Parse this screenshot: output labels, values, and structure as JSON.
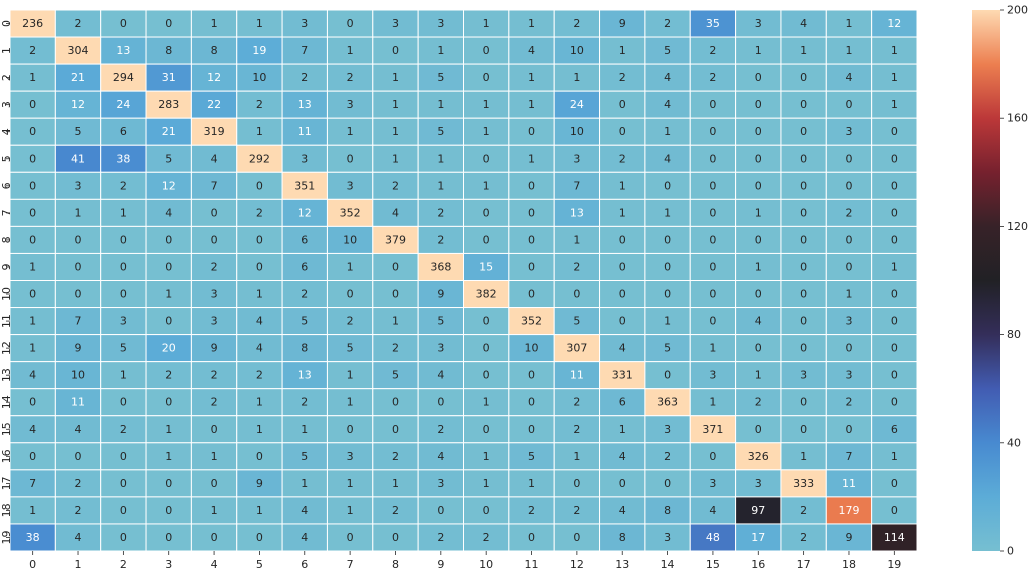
{
  "chart_data": {
    "type": "heatmap",
    "x_labels": [
      "0",
      "1",
      "2",
      "3",
      "4",
      "5",
      "6",
      "7",
      "8",
      "9",
      "10",
      "11",
      "12",
      "13",
      "14",
      "15",
      "16",
      "17",
      "18",
      "19"
    ],
    "y_labels": [
      "0",
      "1",
      "2",
      "3",
      "4",
      "5",
      "6",
      "7",
      "8",
      "9",
      "10",
      "11",
      "12",
      "13",
      "14",
      "15",
      "16",
      "17",
      "18",
      "19"
    ],
    "values": [
      [
        236,
        2,
        0,
        0,
        1,
        1,
        3,
        0,
        3,
        3,
        1,
        1,
        2,
        9,
        2,
        35,
        3,
        4,
        1,
        12
      ],
      [
        2,
        304,
        13,
        8,
        8,
        19,
        7,
        1,
        0,
        1,
        0,
        4,
        10,
        1,
        5,
        2,
        1,
        1,
        1,
        1
      ],
      [
        1,
        21,
        294,
        31,
        12,
        10,
        2,
        2,
        1,
        5,
        0,
        1,
        1,
        2,
        4,
        2,
        0,
        0,
        4,
        1
      ],
      [
        0,
        12,
        24,
        283,
        22,
        2,
        13,
        3,
        1,
        1,
        1,
        1,
        24,
        0,
        4,
        0,
        0,
        0,
        0,
        1
      ],
      [
        0,
        5,
        6,
        21,
        319,
        1,
        11,
        1,
        1,
        5,
        1,
        0,
        10,
        0,
        1,
        0,
        0,
        0,
        3,
        0
      ],
      [
        0,
        41,
        38,
        5,
        4,
        292,
        3,
        0,
        1,
        1,
        0,
        1,
        3,
        2,
        4,
        0,
        0,
        0,
        0,
        0
      ],
      [
        0,
        3,
        2,
        12,
        7,
        0,
        351,
        3,
        2,
        1,
        1,
        0,
        7,
        1,
        0,
        0,
        0,
        0,
        0,
        0
      ],
      [
        0,
        1,
        1,
        4,
        0,
        2,
        12,
        352,
        4,
        2,
        0,
        0,
        13,
        1,
        1,
        0,
        1,
        0,
        2,
        0
      ],
      [
        0,
        0,
        0,
        0,
        0,
        0,
        6,
        10,
        379,
        2,
        0,
        0,
        1,
        0,
        0,
        0,
        0,
        0,
        0,
        0
      ],
      [
        1,
        0,
        0,
        0,
        2,
        0,
        6,
        1,
        0,
        368,
        15,
        0,
        2,
        0,
        0,
        0,
        1,
        0,
        0,
        1
      ],
      [
        0,
        0,
        0,
        1,
        3,
        1,
        2,
        0,
        0,
        9,
        382,
        0,
        0,
        0,
        0,
        0,
        0,
        0,
        1,
        0
      ],
      [
        1,
        7,
        3,
        0,
        3,
        4,
        5,
        2,
        1,
        5,
        0,
        352,
        5,
        0,
        1,
        0,
        4,
        0,
        3,
        0
      ],
      [
        1,
        9,
        5,
        20,
        9,
        4,
        8,
        5,
        2,
        3,
        0,
        10,
        307,
        4,
        5,
        1,
        0,
        0,
        0,
        0
      ],
      [
        4,
        10,
        1,
        2,
        2,
        2,
        13,
        1,
        5,
        4,
        0,
        0,
        11,
        331,
        0,
        3,
        1,
        3,
        3,
        0
      ],
      [
        0,
        11,
        0,
        0,
        2,
        1,
        2,
        1,
        0,
        0,
        1,
        0,
        2,
        6,
        363,
        1,
        2,
        0,
        2,
        0
      ],
      [
        4,
        4,
        2,
        1,
        0,
        1,
        1,
        0,
        0,
        2,
        0,
        0,
        2,
        1,
        3,
        371,
        0,
        0,
        0,
        6
      ],
      [
        0,
        0,
        0,
        1,
        1,
        0,
        5,
        3,
        2,
        4,
        1,
        5,
        1,
        4,
        2,
        0,
        326,
        1,
        7,
        1
      ],
      [
        7,
        2,
        0,
        0,
        0,
        9,
        1,
        1,
        1,
        3,
        1,
        1,
        0,
        0,
        0,
        3,
        3,
        333,
        11,
        0
      ],
      [
        1,
        2,
        0,
        0,
        1,
        1,
        4,
        1,
        2,
        0,
        0,
        2,
        2,
        4,
        8,
        4,
        97,
        2,
        179,
        0
      ],
      [
        38,
        4,
        0,
        0,
        0,
        0,
        4,
        0,
        0,
        2,
        2,
        0,
        0,
        8,
        3,
        48,
        17,
        2,
        9,
        114
      ]
    ],
    "colorbar": {
      "range": [
        0,
        200
      ],
      "ticks": [
        "0",
        "40",
        "80",
        "120",
        "160",
        "200"
      ]
    },
    "title": "",
    "xlabel": "",
    "ylabel": "",
    "grid": false,
    "legend": "none"
  }
}
